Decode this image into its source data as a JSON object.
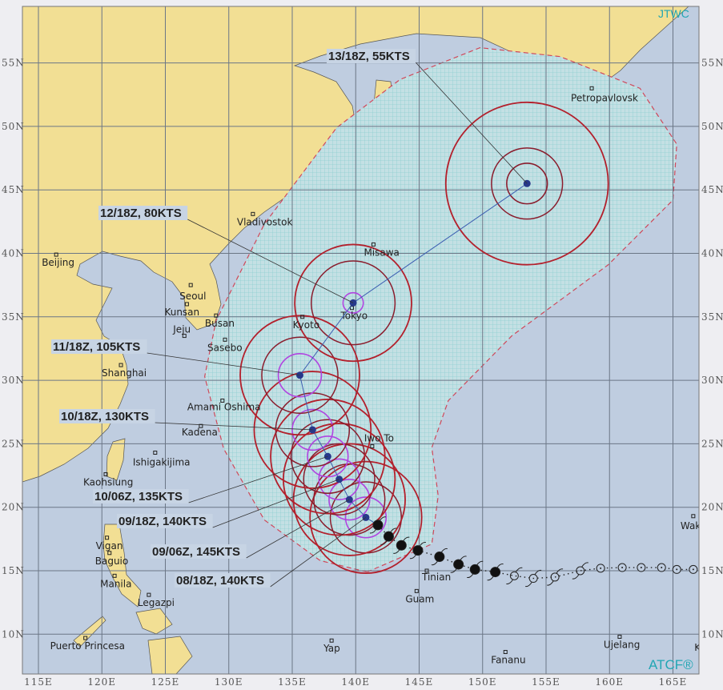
{
  "header": {
    "agency": "JTWC",
    "footer_mark": "ATCF®"
  },
  "colors": {
    "land": "#f2df94",
    "water": "#bfcde0",
    "grid": "#6b7686",
    "swath_fill": "#c4e0e4",
    "swath_hatch": "#8fcfd2",
    "swath_edge": "#d0485a",
    "radius_34kt": "#b3202c",
    "radius_50kt": "#8a1c2c",
    "radius_64kt": "#b044e0",
    "forecast_point": "#27388a",
    "track_line": "#3a5cb0",
    "past_track": "#111111",
    "label_bg": "#c7d4e4",
    "atcf": "#22a6b4"
  },
  "axes": {
    "lon_ticks": [
      "115E",
      "120E",
      "125E",
      "130E",
      "135E",
      "140E",
      "145E",
      "150E",
      "155E",
      "160E",
      "165E"
    ],
    "lon_values": [
      115,
      120,
      125,
      130,
      135,
      140,
      145,
      150,
      155,
      160,
      165
    ],
    "lat_ticks": [
      "10N",
      "15N",
      "20N",
      "25N",
      "30N",
      "35N",
      "40N",
      "45N",
      "50N",
      "55N"
    ],
    "lat_values": [
      10,
      15,
      20,
      25,
      30,
      35,
      40,
      45,
      50,
      55
    ],
    "lon_range": [
      113.7,
      167.0
    ],
    "lat_range": [
      6.9,
      59.4
    ],
    "grid": true
  },
  "cities": [
    {
      "name": "Beijing",
      "lon": 116.4,
      "lat": 39.9
    },
    {
      "name": "Vladivostok",
      "lon": 131.9,
      "lat": 43.1
    },
    {
      "name": "Seoul",
      "lon": 127.0,
      "lat": 37.5
    },
    {
      "name": "Kunsan",
      "lon": 126.7,
      "lat": 36.0
    },
    {
      "name": "Busan",
      "lon": 129.0,
      "lat": 35.1
    },
    {
      "name": "Jeju",
      "lon": 126.5,
      "lat": 33.5
    },
    {
      "name": "Sasebo",
      "lon": 129.7,
      "lat": 33.2
    },
    {
      "name": "Shanghai",
      "lon": 121.5,
      "lat": 31.2
    },
    {
      "name": "Kyoto",
      "lon": 135.8,
      "lat": 35.0
    },
    {
      "name": "Tokyo",
      "lon": 139.7,
      "lat": 35.7
    },
    {
      "name": "Misawa",
      "lon": 141.4,
      "lat": 40.7
    },
    {
      "name": "Amami Oshima",
      "lon": 129.5,
      "lat": 28.4
    },
    {
      "name": "Kadena",
      "lon": 127.8,
      "lat": 26.4
    },
    {
      "name": "Ishigakijima",
      "lon": 124.2,
      "lat": 24.3
    },
    {
      "name": "Kaohsiung",
      "lon": 120.3,
      "lat": 22.6
    },
    {
      "name": "Iwo To",
      "lon": 141.3,
      "lat": 24.8
    },
    {
      "name": "Vigan",
      "lon": 120.4,
      "lat": 17.6
    },
    {
      "name": "Baguio",
      "lon": 120.6,
      "lat": 16.4
    },
    {
      "name": "Manila",
      "lon": 121.0,
      "lat": 14.6
    },
    {
      "name": "Legazpi",
      "lon": 123.7,
      "lat": 13.1
    },
    {
      "name": "Puerto Princesa",
      "lon": 118.7,
      "lat": 9.7
    },
    {
      "name": "Yap",
      "lon": 138.1,
      "lat": 9.5
    },
    {
      "name": "Guam",
      "lon": 144.8,
      "lat": 13.4
    },
    {
      "name": "Tinian",
      "lon": 145.6,
      "lat": 15.0
    },
    {
      "name": "Fananu",
      "lon": 151.8,
      "lat": 8.6
    },
    {
      "name": "Ujelang",
      "lon": 160.8,
      "lat": 9.8
    },
    {
      "name": "Wak",
      "lon": 166.6,
      "lat": 19.3
    },
    {
      "name": "Kw",
      "lon": 167.7,
      "lat": 8.7
    },
    {
      "name": "Petropavlovsk",
      "lon": 158.6,
      "lat": 53.0
    }
  ],
  "current_position": {
    "lon": 141.75,
    "lat": 18.6
  },
  "forecast": [
    {
      "label": "08/18Z, 140KTS",
      "lon": 140.8,
      "lat": 19.2,
      "r34": 4.4,
      "r50": 2.8,
      "r64": 1.6
    },
    {
      "label": "09/06Z, 145KTS",
      "lon": 139.5,
      "lat": 20.6,
      "r34": 4.4,
      "r50": 2.8,
      "r64": 1.6
    },
    {
      "label": "09/18Z, 140KTS",
      "lon": 138.7,
      "lat": 22.2,
      "r34": 4.4,
      "r50": 2.8,
      "r64": 1.6
    },
    {
      "label": "10/06Z, 135KTS",
      "lon": 137.8,
      "lat": 24.0,
      "r34": 4.5,
      "r50": 2.9,
      "r64": 1.6
    },
    {
      "label": "10/18Z, 130KTS",
      "lon": 136.6,
      "lat": 26.1,
      "r34": 4.6,
      "r50": 2.9,
      "r64": 1.6
    },
    {
      "label": "11/18Z, 105KTS",
      "lon": 135.6,
      "lat": 30.4,
      "r34": 4.7,
      "r50": 3.0,
      "r64": 1.7
    },
    {
      "label": "12/18Z, 80KTS",
      "lon": 139.8,
      "lat": 36.1,
      "r34": 4.6,
      "r50": 3.3,
      "r64": 0.8
    },
    {
      "label": "13/18Z, 55KTS",
      "lon": 153.5,
      "lat": 45.5,
      "r34": 6.4,
      "r50": 2.8,
      "r64": 1.6
    }
  ],
  "past_track": [
    {
      "lon": 141.75,
      "lat": 18.6,
      "type": "typhoon"
    },
    {
      "lon": 142.6,
      "lat": 17.7,
      "type": "typhoon"
    },
    {
      "lon": 143.6,
      "lat": 17.0,
      "type": "typhoon"
    },
    {
      "lon": 144.9,
      "lat": 16.6,
      "type": "typhoon"
    },
    {
      "lon": 146.6,
      "lat": 16.1,
      "type": "typhoon"
    },
    {
      "lon": 148.1,
      "lat": 15.5,
      "type": "typhoon"
    },
    {
      "lon": 149.4,
      "lat": 15.1,
      "type": "typhoon"
    },
    {
      "lon": 151.0,
      "lat": 14.9,
      "type": "typhoon"
    },
    {
      "lon": 152.5,
      "lat": 14.6,
      "type": "storm"
    },
    {
      "lon": 154.0,
      "lat": 14.4,
      "type": "storm"
    },
    {
      "lon": 155.7,
      "lat": 14.5,
      "type": "storm"
    },
    {
      "lon": 157.7,
      "lat": 15.0,
      "type": "storm"
    },
    {
      "lon": 159.3,
      "lat": 15.2,
      "type": "depression"
    },
    {
      "lon": 161.0,
      "lat": 15.25,
      "type": "depression"
    },
    {
      "lon": 162.5,
      "lat": 15.25,
      "type": "depression"
    },
    {
      "lon": 164.1,
      "lat": 15.25,
      "type": "depression"
    },
    {
      "lon": 165.3,
      "lat": 15.1,
      "type": "depression"
    },
    {
      "lon": 166.6,
      "lat": 15.1,
      "type": "depression"
    }
  ],
  "danger_swath": [
    [
      140.9,
      14.9
    ],
    [
      146.0,
      17.1
    ],
    [
      146.5,
      20.9
    ],
    [
      146.0,
      24.7
    ],
    [
      147.3,
      28.4
    ],
    [
      152.3,
      33.5
    ],
    [
      159.9,
      39.1
    ],
    [
      165.0,
      44.2
    ],
    [
      165.3,
      48.6
    ],
    [
      162.4,
      53.0
    ],
    [
      156.1,
      55.5
    ],
    [
      149.8,
      56.2
    ],
    [
      143.5,
      53.7
    ],
    [
      138.5,
      49.9
    ],
    [
      132.8,
      42.3
    ],
    [
      129.0,
      34.7
    ],
    [
      128.1,
      30.3
    ],
    [
      129.6,
      24.6
    ],
    [
      132.8,
      19.0
    ],
    [
      137.2,
      15.8
    ]
  ]
}
